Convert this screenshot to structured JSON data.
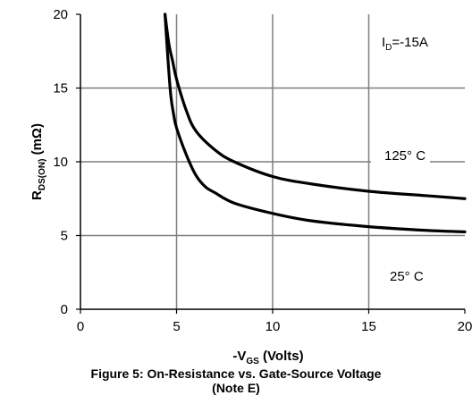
{
  "chart_data": {
    "type": "line",
    "title": "",
    "xlabel": "-V",
    "xlabel_sub": "GS",
    "xlabel_suffix": " (Volts)",
    "ylabel": "R",
    "ylabel_sub": "DS(ON)",
    "ylabel_suffix": " (mΩ)",
    "xlim": [
      0,
      20
    ],
    "ylim": [
      0,
      20
    ],
    "xticks": [
      "0",
      "5",
      "10",
      "15",
      "20"
    ],
    "yticks": [
      "0",
      "5",
      "10",
      "15",
      "20"
    ],
    "grid": true,
    "series": [
      {
        "name": "125° C",
        "x": [
          4.4,
          4.6,
          4.8,
          5.0,
          5.5,
          6.0,
          7.0,
          8.0,
          10.0,
          12.0,
          15.0,
          18.0,
          20.0
        ],
        "y": [
          20.0,
          18.0,
          16.8,
          15.6,
          13.5,
          12.1,
          10.8,
          10.0,
          9.0,
          8.5,
          8.0,
          7.7,
          7.5
        ]
      },
      {
        "name": "25° C",
        "x": [
          4.4,
          4.55,
          4.7,
          4.85,
          5.0,
          5.5,
          6.0,
          6.5,
          7.0,
          8.0,
          10.0,
          12.0,
          15.0,
          18.0,
          20.0
        ],
        "y": [
          20.0,
          17.0,
          14.5,
          13.2,
          12.3,
          10.5,
          9.1,
          8.3,
          7.9,
          7.2,
          6.5,
          6.0,
          5.6,
          5.35,
          5.25
        ]
      }
    ],
    "annotation": {
      "text": "I",
      "sub": "D",
      "suffix": "=-15A"
    }
  },
  "caption": {
    "line1": "Figure 5: On-Resistance vs. Gate-Source Voltage",
    "line2": "(Note E)"
  }
}
